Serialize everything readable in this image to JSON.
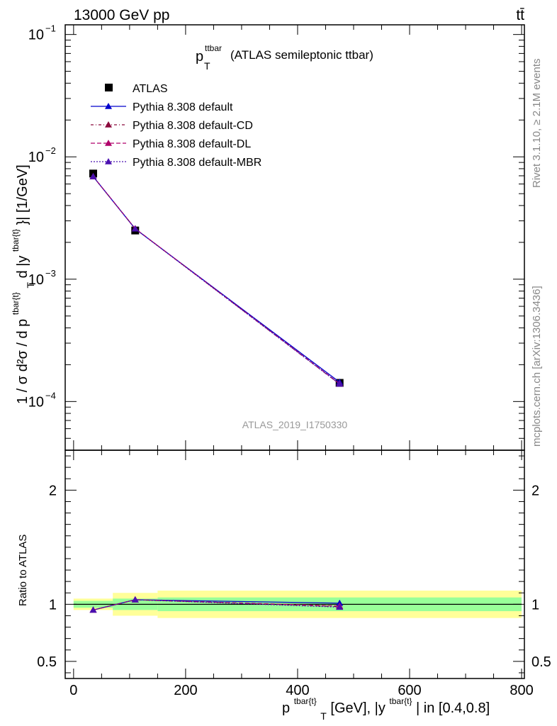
{
  "header": {
    "left": "13000 GeV pp",
    "right": "tt̄"
  },
  "side": {
    "rivet": "Rivet 3.1.10, ≥ 2.1M events",
    "mcplots": "mcplots.cern.ch [arXiv:1306.3436]"
  },
  "chart_data": {
    "type": "line",
    "title_main": "p",
    "title_sup": "ttbar",
    "title_sub": "T",
    "title_rest": "(ATLAS semileptonic ttbar)",
    "analysis": "ATLAS_2019_I1750330",
    "ylabel_main": "1 / σ d²σ / d p",
    "ylabel_sup1": "tbar{t}",
    "ylabel_sub": "T",
    "ylabel_mid": "d |y",
    "ylabel_sup2": "tbar{t}",
    "ylabel_end": "}| [1/GeV]",
    "ratio_ylabel": "Ratio to ATLAS",
    "xlabel_main": "p",
    "xlabel_sup1": "tbar{t}",
    "xlabel_sub": "T",
    "xlabel_mid": "[GeV], |y",
    "xlabel_sup2": "tbar{t}",
    "xlabel_end": "| in [0.4,0.8]",
    "xlim": [
      -15,
      805
    ],
    "ylim": [
      4e-05,
      0.12
    ],
    "yscale": "log",
    "ratio_ylim": [
      0.35,
      2.35
    ],
    "x_ticks": [
      0,
      200,
      400,
      600,
      800
    ],
    "y_ticks": [
      {
        "v": 0.0001,
        "base": "10",
        "exp": "−4"
      },
      {
        "v": 0.001,
        "base": "10",
        "exp": "−3"
      },
      {
        "v": 0.01,
        "base": "10",
        "exp": "−2"
      },
      {
        "v": 0.1,
        "base": "10",
        "exp": "−1"
      }
    ],
    "ratio_ticks": [
      {
        "v": 0.5,
        "label": "0.5"
      },
      {
        "v": 1,
        "label": "1"
      },
      {
        "v": 2,
        "label": "2"
      }
    ],
    "bins": [
      [
        0,
        70
      ],
      [
        70,
        150
      ],
      [
        150,
        800
      ]
    ],
    "data": {
      "name": "ATLAS",
      "x": [
        35,
        110,
        475
      ],
      "y": [
        0.0073,
        0.0025,
        0.000142
      ],
      "band_inner": [
        0.03,
        0.05,
        0.06
      ],
      "band_outer": [
        0.05,
        0.1,
        0.12
      ]
    },
    "series": [
      {
        "name": "Pythia 8.308 default",
        "color": "#0000cc",
        "dash": "",
        "x": [
          35,
          110,
          475
        ],
        "y": [
          0.0069,
          0.00258,
          0.000144
        ],
        "ratio": [
          0.95,
          1.04,
          1.01
        ]
      },
      {
        "name": "Pythia 8.308 default-CD",
        "color": "#8b0a3c",
        "dash": "4,3,1,3",
        "x": [
          35,
          110,
          475
        ],
        "y": [
          0.0069,
          0.00259,
          0.000139
        ],
        "ratio": [
          0.95,
          1.04,
          0.98
        ]
      },
      {
        "name": "Pythia 8.308 default-DL",
        "color": "#b0006a",
        "dash": "6,3",
        "x": [
          35,
          110,
          475
        ],
        "y": [
          0.0069,
          0.00259,
          0.00014
        ],
        "ratio": [
          0.95,
          1.04,
          0.985
        ]
      },
      {
        "name": "Pythia 8.308 default-MBR",
        "color": "#4a10b0",
        "dash": "2,2",
        "x": [
          35,
          110,
          475
        ],
        "y": [
          0.0069,
          0.00258,
          0.000139
        ],
        "ratio": [
          0.95,
          1.04,
          0.975
        ]
      }
    ]
  }
}
